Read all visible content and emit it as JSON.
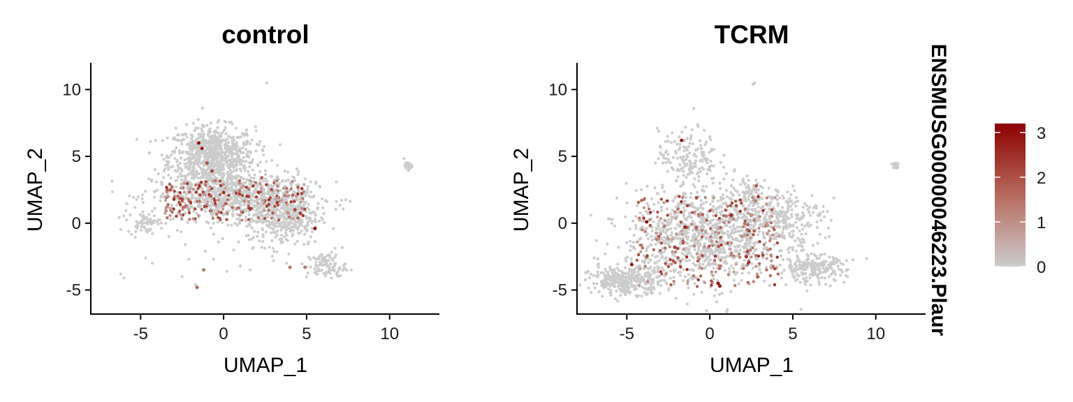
{
  "feature": "ENSMUSG00000046223.Plaur",
  "colors": {
    "low": "#cccccc",
    "mid": "#b05a4c",
    "high": "#8b0000"
  },
  "legend": {
    "ticks": [
      "0",
      "1",
      "2",
      "3"
    ],
    "min": 0,
    "max": 3.2
  },
  "chart_data": [
    {
      "type": "scatter",
      "title": "control",
      "xlabel": "UMAP_1",
      "ylabel": "UMAP_2",
      "xlim": [
        -8,
        13
      ],
      "ylim": [
        -6.8,
        12
      ],
      "xticks": [
        "-5",
        "0",
        "5",
        "10"
      ],
      "yticks": [
        "-5",
        "0",
        "5",
        "10"
      ],
      "color_scale": "Plaur expression, 0 (grey) to 3 (dark red)",
      "clusters": [
        {
          "cx": -0.7,
          "cy": 5.0,
          "sx": 1.3,
          "sy": 1.1,
          "n": 800
        },
        {
          "cx": 0.5,
          "cy": 2.0,
          "sx": 2.4,
          "sy": 0.9,
          "n": 750
        },
        {
          "cx": 3.6,
          "cy": 0.5,
          "sx": 1.1,
          "sy": 1.1,
          "n": 380
        },
        {
          "cx": -4.8,
          "cy": 0.0,
          "sx": 0.5,
          "sy": 0.35,
          "n": 60
        },
        {
          "cx": 6.2,
          "cy": -3.2,
          "sx": 0.6,
          "sy": 0.5,
          "n": 100
        },
        {
          "cx": 11.1,
          "cy": 4.3,
          "sx": 0.12,
          "sy": 0.15,
          "n": 25
        }
      ],
      "points": [
        {
          "x": -1.5,
          "y": 6.0,
          "v": 3.0
        },
        {
          "x": -1.3,
          "y": 5.6,
          "v": 2.8
        },
        {
          "x": -1.0,
          "y": 4.5,
          "v": 1.8
        },
        {
          "x": -0.7,
          "y": 3.9,
          "v": 1.9
        },
        {
          "x": 5.5,
          "y": -0.4,
          "v": 3.1
        },
        {
          "x": -2.5,
          "y": 1.8,
          "v": 2.0
        },
        {
          "x": -3.2,
          "y": 2.5,
          "v": 1.6
        },
        {
          "x": 0.0,
          "y": 2.3,
          "v": 2.4
        },
        {
          "x": 1.5,
          "y": 2.0,
          "v": 2.0
        },
        {
          "x": -1.6,
          "y": -4.8,
          "v": 1.4
        },
        {
          "x": -1.2,
          "y": -3.5,
          "v": 1.2
        },
        {
          "x": 2.3,
          "y": 3.4,
          "v": 1.5
        },
        {
          "x": 4.3,
          "y": 1.0,
          "v": 1.9
        },
        {
          "x": 2.1,
          "y": 2.3,
          "v": 2.2
        },
        {
          "x": 4.9,
          "y": -3.3,
          "v": 1.2
        },
        {
          "x": 4.0,
          "y": -3.3,
          "v": 1.3
        }
      ],
      "random_expressing": 220,
      "random_band": [
        -3.6,
        4.9,
        0.2,
        3.2
      ],
      "stray": [
        [
          -6.2,
          -3.8
        ],
        [
          -6.0,
          -4.1
        ],
        [
          -4.7,
          -2.6
        ],
        [
          -4.3,
          -3.0
        ],
        [
          -2.3,
          -1.6
        ],
        [
          -2.1,
          -2.7
        ],
        [
          -1.1,
          -2.1
        ],
        [
          -0.3,
          -1.4
        ],
        [
          0.6,
          -2.0
        ],
        [
          1.5,
          -0.9
        ],
        [
          1.0,
          -3.2
        ],
        [
          2.3,
          -1.8
        ],
        [
          3.0,
          -2.8
        ],
        [
          3.8,
          -3.0
        ],
        [
          -0.6,
          -2.7
        ],
        [
          0.2,
          -3.6
        ],
        [
          1.6,
          -3.5
        ],
        [
          -1.7,
          -4.6
        ],
        [
          -2.5,
          -4.0
        ],
        [
          2.6,
          10.5
        ],
        [
          -3.3,
          -1.0
        ],
        [
          0.9,
          -1.4
        ]
      ]
    },
    {
      "type": "scatter",
      "title": "TCRM",
      "xlabel": "UMAP_1",
      "ylabel": "UMAP_2",
      "xlim": [
        -8,
        13
      ],
      "ylim": [
        -6.8,
        12
      ],
      "xticks": [
        "-5",
        "0",
        "5",
        "10"
      ],
      "yticks": [
        "-5",
        "0",
        "5",
        "10"
      ],
      "color_scale": "Plaur expression, 0 (grey) to 3 (dark red)",
      "clusters": [
        {
          "cx": -1.3,
          "cy": 5.0,
          "sx": 0.9,
          "sy": 1.0,
          "n": 160
        },
        {
          "cx": -0.4,
          "cy": -1.0,
          "sx": 2.3,
          "sy": 1.8,
          "n": 1000
        },
        {
          "cx": -5.0,
          "cy": -4.3,
          "sx": 1.1,
          "sy": 0.5,
          "n": 320
        },
        {
          "cx": 4.0,
          "cy": 0.5,
          "sx": 1.4,
          "sy": 1.0,
          "n": 280
        },
        {
          "cx": 6.2,
          "cy": -3.4,
          "sx": 1.0,
          "sy": 0.5,
          "n": 220
        },
        {
          "cx": 2.5,
          "cy": 2.5,
          "sx": 0.5,
          "sy": 0.4,
          "n": 50
        },
        {
          "cx": 11.2,
          "cy": 4.3,
          "sx": 0.12,
          "sy": 0.15,
          "n": 25
        }
      ],
      "points": [
        {
          "x": -1.7,
          "y": 6.2,
          "v": 2.9
        },
        {
          "x": -4.7,
          "y": -3.1,
          "v": 2.9
        },
        {
          "x": -3.8,
          "y": 0.1,
          "v": 3.0
        },
        {
          "x": -1.5,
          "y": -0.3,
          "v": 2.6
        },
        {
          "x": 0.5,
          "y": -4.5,
          "v": 3.1
        },
        {
          "x": 0.6,
          "y": -4.7,
          "v": 2.8
        },
        {
          "x": 1.3,
          "y": 0.6,
          "v": 2.5
        },
        {
          "x": 2.2,
          "y": -2.5,
          "v": 2.3
        },
        {
          "x": -0.8,
          "y": 1.9,
          "v": 2.0
        },
        {
          "x": -2.1,
          "y": -1.8,
          "v": 2.2
        },
        {
          "x": 3.2,
          "y": -2.4,
          "v": 1.9
        },
        {
          "x": 2.8,
          "y": 2.8,
          "v": 1.6
        }
      ],
      "random_expressing": 260,
      "random_band": [
        -4.4,
        4.2,
        -4.8,
        2.0
      ],
      "stray": [
        [
          -2.0,
          3.2
        ],
        [
          -1.0,
          2.9
        ],
        [
          -3.1,
          2.2
        ],
        [
          0.2,
          3.0
        ],
        [
          1.0,
          3.7
        ],
        [
          -1.2,
          4.6
        ],
        [
          2.6,
          10.4
        ],
        [
          2.7,
          10.5
        ],
        [
          4.6,
          1.6
        ],
        [
          7.2,
          -1.0
        ],
        [
          6.5,
          -1.5
        ],
        [
          -6.3,
          -2.3
        ],
        [
          -6.7,
          -3.3
        ],
        [
          -5.5,
          -1.8
        ]
      ]
    }
  ]
}
